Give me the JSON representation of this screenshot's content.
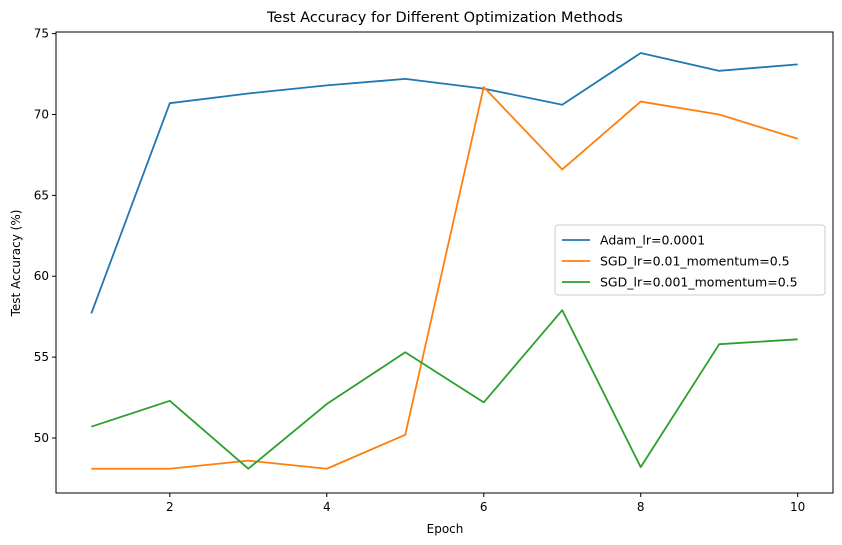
{
  "chart_data": {
    "type": "line",
    "title": "Test Accuracy for Different Optimization Methods",
    "xlabel": "Epoch",
    "ylabel": "Test Accuracy (%)",
    "x": [
      1,
      2,
      3,
      4,
      5,
      6,
      7,
      8,
      9,
      10
    ],
    "xlim": [
      0.55,
      10.45
    ],
    "ylim": [
      46.6,
      75.1
    ],
    "xticks": [
      2,
      4,
      6,
      8,
      10
    ],
    "yticks": [
      50,
      55,
      60,
      65,
      70,
      75
    ],
    "grid": false,
    "legend_position": "center-right",
    "series": [
      {
        "name": "Adam_lr=0.0001",
        "color": "#1f77b4",
        "values": [
          57.7,
          70.7,
          71.3,
          71.8,
          72.2,
          71.6,
          70.6,
          73.8,
          72.7,
          73.1
        ]
      },
      {
        "name": "SGD_lr=0.01_momentum=0.5",
        "color": "#ff7f0e",
        "values": [
          48.1,
          48.1,
          48.6,
          48.1,
          50.2,
          71.7,
          66.6,
          70.8,
          70.0,
          68.5
        ]
      },
      {
        "name": "SGD_lr=0.001_momentum=0.5",
        "color": "#2ca02c",
        "values": [
          50.7,
          52.3,
          48.1,
          52.1,
          55.3,
          52.2,
          57.9,
          48.2,
          55.8,
          56.1
        ]
      }
    ]
  }
}
